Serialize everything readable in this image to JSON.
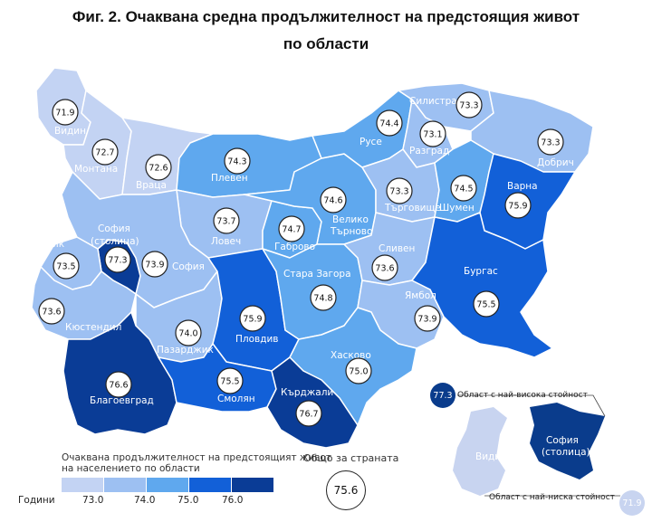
{
  "title_line1": "Фиг. 2. Очаквана средна продължителност на предстоящия живот",
  "title_line2": "по области",
  "legend": {
    "title": "Очаквана продължителност на предстоящият живот на населението по области",
    "years_label": "Години",
    "ticks": [
      "73.0",
      "74.0",
      "75.0",
      "76.0"
    ],
    "colors": [
      "#c3d3f3",
      "#9dc0f2",
      "#5fa8ee",
      "#1260d8",
      "#0a3c96"
    ]
  },
  "country": {
    "label": "Общо за страната",
    "value": "75.6"
  },
  "inset": {
    "high_value": "77.3",
    "high_label": "Област с най-висока стойност",
    "high_region": "София (столица)",
    "low_value": "71.9",
    "low_label": "Област с най-ниска стойност",
    "low_region": "Видин"
  },
  "regions": [
    {
      "name": "Видин",
      "value": "71.9",
      "color": "#c3d3f3"
    },
    {
      "name": "Монтана",
      "value": "72.7",
      "color": "#c3d3f3"
    },
    {
      "name": "Враца",
      "value": "72.6",
      "color": "#c3d3f3"
    },
    {
      "name": "Плевен",
      "value": "74.3",
      "color": "#5fa8ee"
    },
    {
      "name": "Ловеч",
      "value": "73.7",
      "color": "#9dc0f2"
    },
    {
      "name": "Габрово",
      "value": "74.7",
      "color": "#5fa8ee"
    },
    {
      "name": "Велико Търново",
      "value": "74.6",
      "color": "#5fa8ee"
    },
    {
      "name": "Русе",
      "value": "74.4",
      "color": "#5fa8ee"
    },
    {
      "name": "Силистра",
      "value": "73.3",
      "color": "#9dc0f2"
    },
    {
      "name": "Разград",
      "value": "73.1",
      "color": "#9dc0f2"
    },
    {
      "name": "Добрич",
      "value": "73.3",
      "color": "#9dc0f2"
    },
    {
      "name": "Търговище",
      "value": "73.3",
      "color": "#9dc0f2"
    },
    {
      "name": "Шумен",
      "value": "74.5",
      "color": "#5fa8ee"
    },
    {
      "name": "Варна",
      "value": "75.9",
      "color": "#1260d8"
    },
    {
      "name": "София (столица)",
      "value": "77.3",
      "color": "#0a3c96"
    },
    {
      "name": "Перник",
      "value": "73.5",
      "color": "#9dc0f2"
    },
    {
      "name": "София",
      "value": "73.9",
      "color": "#9dc0f2"
    },
    {
      "name": "Кюстендил",
      "value": "73.6",
      "color": "#9dc0f2"
    },
    {
      "name": "Пазарджик",
      "value": "74.0",
      "color": "#9dc0f2"
    },
    {
      "name": "Пловдив",
      "value": "75.9",
      "color": "#1260d8"
    },
    {
      "name": "Стара Загора",
      "value": "74.8",
      "color": "#5fa8ee"
    },
    {
      "name": "Сливен",
      "value": "73.6",
      "color": "#9dc0f2"
    },
    {
      "name": "Ямбол",
      "value": "73.9",
      "color": "#9dc0f2"
    },
    {
      "name": "Бургас",
      "value": "75.5",
      "color": "#1260d8"
    },
    {
      "name": "Хасково",
      "value": "75.0",
      "color": "#5fa8ee"
    },
    {
      "name": "Благоевград",
      "value": "76.6",
      "color": "#0a3c96"
    },
    {
      "name": "Смолян",
      "value": "75.5",
      "color": "#1260d8"
    },
    {
      "name": "Кърджали",
      "value": "76.7",
      "color": "#0a3c96"
    }
  ]
}
